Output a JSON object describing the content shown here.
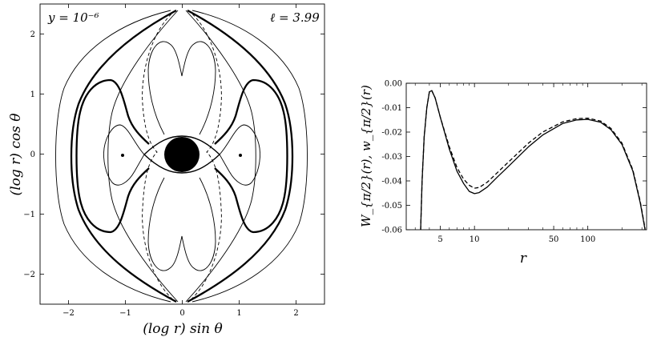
{
  "chart_data": [
    {
      "type": "contour",
      "xlabel": "(log r) sin θ",
      "ylabel": "(log r) cos θ",
      "xlim": [
        -2.5,
        2.5
      ],
      "ylim": [
        -2.5,
        2.5
      ],
      "xticks": [
        "-2",
        "-1",
        "0",
        "1",
        "2"
      ],
      "yticks": [
        "-2",
        "-1",
        "0",
        "1",
        "2"
      ],
      "annotations": {
        "left": "y = 10⁻⁶",
        "right": "ℓ = 3.99"
      },
      "features": {
        "outer_circle_radius": 2.0,
        "central_disk_radius": 0.35,
        "centers": [
          [
            -1.0,
            0.0
          ],
          [
            1.0,
            0.0
          ]
        ],
        "cusp": [
          [
            0.0,
            2.5
          ],
          [
            0.0,
            -2.5
          ]
        ]
      }
    },
    {
      "type": "line",
      "x_scale": "log",
      "xlabel": "r",
      "ylabel": "W_{π/2}(r), w_{π/2}(r)",
      "xlim": [
        2.5,
        330
      ],
      "ylim": [
        -0.06,
        0.0
      ],
      "xticks": [
        5,
        10,
        50,
        100
      ],
      "yticks": [
        "0.00",
        "-0.01",
        "-0.02",
        "-0.03",
        "-0.04",
        "-0.05",
        "-0.06"
      ],
      "series": [
        {
          "style": "solid",
          "x": [
            3.35,
            3.45,
            3.6,
            3.8,
            4.0,
            4.2,
            4.5,
            5,
            6,
            7,
            8,
            9,
            10,
            11,
            13,
            16,
            20,
            30,
            40,
            60,
            80,
            100,
            130,
            160,
            200,
            250,
            290,
            320
          ],
          "y": [
            -0.06,
            -0.04,
            -0.022,
            -0.01,
            -0.0035,
            -0.003,
            -0.006,
            -0.014,
            -0.027,
            -0.036,
            -0.041,
            -0.0443,
            -0.0452,
            -0.0448,
            -0.0425,
            -0.0383,
            -0.034,
            -0.026,
            -0.0212,
            -0.0165,
            -0.015,
            -0.0148,
            -0.016,
            -0.019,
            -0.025,
            -0.036,
            -0.049,
            -0.06
          ]
        },
        {
          "style": "dashed",
          "x": [
            3.35,
            3.45,
            3.6,
            3.8,
            4.0,
            4.2,
            4.5,
            5,
            6,
            7,
            8,
            9,
            10,
            11,
            13,
            16,
            20,
            30,
            40,
            60,
            80,
            100,
            130,
            160,
            200,
            250,
            290,
            320
          ],
          "y": [
            -0.06,
            -0.04,
            -0.022,
            -0.01,
            -0.0035,
            -0.003,
            -0.006,
            -0.014,
            -0.026,
            -0.0345,
            -0.0392,
            -0.0418,
            -0.043,
            -0.0427,
            -0.0405,
            -0.0365,
            -0.0322,
            -0.0245,
            -0.02,
            -0.0158,
            -0.0145,
            -0.0143,
            -0.0155,
            -0.0185,
            -0.0245,
            -0.0355,
            -0.0485,
            -0.0595
          ]
        }
      ]
    }
  ]
}
